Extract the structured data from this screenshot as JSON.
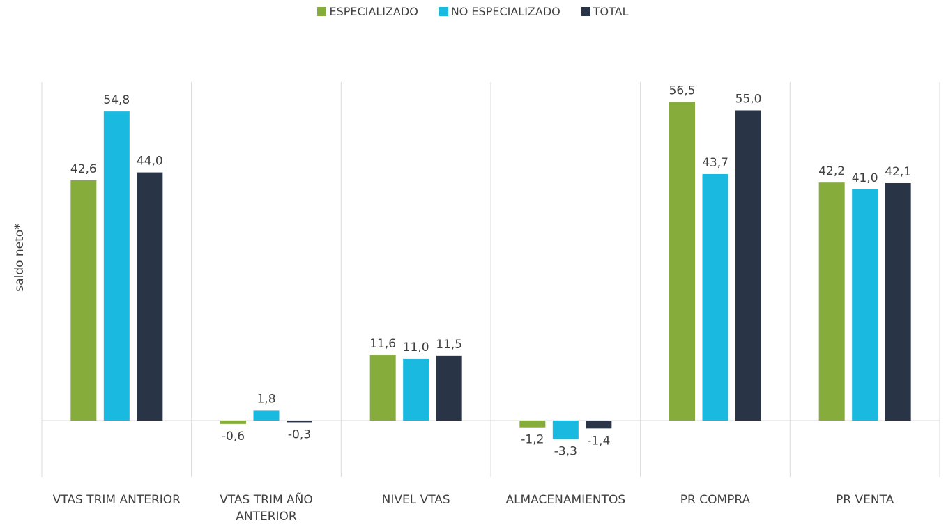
{
  "chart_data": {
    "type": "bar",
    "y_label": "saldo neto*",
    "categories": [
      "VTAS TRIM ANTERIOR",
      "VTAS TRIM AÑO ANTERIOR",
      "NIVEL VTAS",
      "ALMACENAMIENTOS",
      "PR COMPRA",
      "PR VENTA"
    ],
    "series": [
      {
        "name": "ESPECIALIZADO",
        "color": "#86ac3c",
        "values": [
          42.6,
          -0.6,
          11.6,
          -1.2,
          56.5,
          42.2
        ],
        "value_labels": [
          "42,6",
          "-0,6",
          "11,6",
          "-1,2",
          "56,5",
          "42,2"
        ]
      },
      {
        "name": "NO ESPECIALIZADO",
        "color": "#1ab9e0",
        "values": [
          54.8,
          1.8,
          11.0,
          -3.3,
          43.7,
          41.0
        ],
        "value_labels": [
          "54,8",
          "1,8",
          "11,0",
          "-3,3",
          "43,7",
          "41,0"
        ]
      },
      {
        "name": "TOTAL",
        "color": "#2a3447",
        "values": [
          44.0,
          -0.3,
          11.5,
          -1.4,
          55.0,
          42.1
        ],
        "value_labels": [
          "44,0",
          "-0,3",
          "11,5",
          "-1,4",
          "55,0",
          "42,1"
        ]
      }
    ],
    "ylim": [
      -10,
      60
    ],
    "legend": "top"
  }
}
